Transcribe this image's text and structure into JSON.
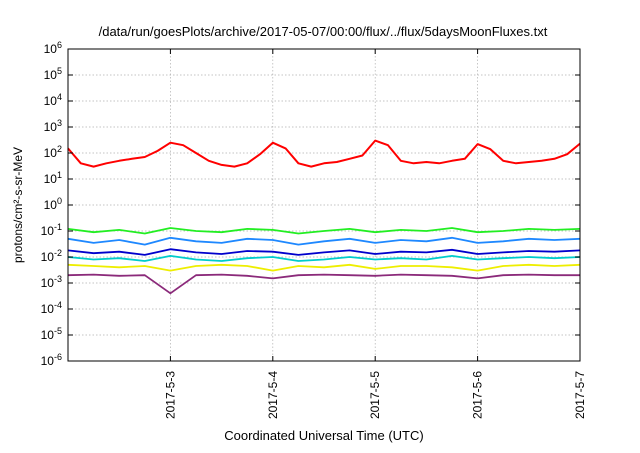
{
  "chart_data": {
    "type": "line",
    "title": "/data/run/goesPlots/archive/2017-05-07/00:00/flux/../flux/5daysMoonFluxes.txt",
    "xlabel": "Coordinated Universal Time (UTC)",
    "ylabel": "protons/cm²-s-sr-MeV",
    "x_scale": "time",
    "y_scale": "log",
    "xlim": [
      "2017-05-02T00:00",
      "2017-05-07T00:00"
    ],
    "ylim": [
      1e-06,
      1000000.0
    ],
    "grid": true,
    "legend": "none",
    "x_ticks": [
      "2017-5-3",
      "2017-5-4",
      "2017-5-5",
      "2017-5-6",
      "2017-5-7"
    ],
    "y_ticks": [
      {
        "value": 1e-06,
        "base": "10",
        "exp": "-6"
      },
      {
        "value": 1e-05,
        "base": "10",
        "exp": "-5"
      },
      {
        "value": 0.0001,
        "base": "10",
        "exp": "-4"
      },
      {
        "value": 0.001,
        "base": "10",
        "exp": "-3"
      },
      {
        "value": 0.01,
        "base": "10",
        "exp": "-2"
      },
      {
        "value": 0.1,
        "base": "10",
        "exp": "-1"
      },
      {
        "value": 1,
        "base": "10",
        "exp": "0"
      },
      {
        "value": 10,
        "base": "10",
        "exp": "1"
      },
      {
        "value": 100,
        "base": "10",
        "exp": "2"
      },
      {
        "value": 1000,
        "base": "10",
        "exp": "3"
      },
      {
        "value": 10000,
        "base": "10",
        "exp": "4"
      },
      {
        "value": 100000,
        "base": "10",
        "exp": "5"
      },
      {
        "value": 1000000,
        "base": "10",
        "exp": "6"
      }
    ],
    "series": [
      {
        "color": "#ff0000",
        "x": [
          "2017-05-02T00:00",
          "2017-05-02T03:00",
          "2017-05-02T06:00",
          "2017-05-02T09:00",
          "2017-05-02T12:00",
          "2017-05-02T15:00",
          "2017-05-02T18:00",
          "2017-05-02T21:00",
          "2017-05-03T00:00",
          "2017-05-03T03:00",
          "2017-05-03T06:00",
          "2017-05-03T09:00",
          "2017-05-03T12:00",
          "2017-05-03T15:00",
          "2017-05-03T18:00",
          "2017-05-03T21:00",
          "2017-05-04T00:00",
          "2017-05-04T03:00",
          "2017-05-04T06:00",
          "2017-05-04T09:00",
          "2017-05-04T12:00",
          "2017-05-04T15:00",
          "2017-05-04T18:00",
          "2017-05-04T21:00",
          "2017-05-05T00:00",
          "2017-05-05T03:00",
          "2017-05-05T06:00",
          "2017-05-05T09:00",
          "2017-05-05T12:00",
          "2017-05-05T15:00",
          "2017-05-05T18:00",
          "2017-05-05T21:00",
          "2017-05-06T00:00",
          "2017-05-06T03:00",
          "2017-05-06T06:00",
          "2017-05-06T09:00",
          "2017-05-06T12:00",
          "2017-05-06T15:00",
          "2017-05-06T18:00",
          "2017-05-06T21:00",
          "2017-05-07T00:00"
        ],
        "y": [
          150,
          40,
          30,
          40,
          50,
          60,
          70,
          120,
          250,
          200,
          100,
          50,
          35,
          30,
          40,
          90,
          250,
          150,
          40,
          30,
          40,
          45,
          60,
          80,
          300,
          200,
          50,
          40,
          45,
          40,
          50,
          60,
          220,
          140,
          50,
          40,
          45,
          50,
          60,
          90,
          230
        ]
      },
      {
        "color": "#22ee22",
        "x": [
          "2017-05-02T00:00",
          "2017-05-02T06:00",
          "2017-05-02T12:00",
          "2017-05-02T18:00",
          "2017-05-03T00:00",
          "2017-05-03T06:00",
          "2017-05-03T12:00",
          "2017-05-03T18:00",
          "2017-05-04T00:00",
          "2017-05-04T06:00",
          "2017-05-04T12:00",
          "2017-05-04T18:00",
          "2017-05-05T00:00",
          "2017-05-05T06:00",
          "2017-05-05T12:00",
          "2017-05-05T18:00",
          "2017-05-06T00:00",
          "2017-05-06T06:00",
          "2017-05-06T12:00",
          "2017-05-06T18:00",
          "2017-05-07T00:00"
        ],
        "y": [
          0.12,
          0.09,
          0.11,
          0.08,
          0.13,
          0.1,
          0.09,
          0.12,
          0.11,
          0.08,
          0.1,
          0.12,
          0.09,
          0.11,
          0.1,
          0.13,
          0.09,
          0.1,
          0.12,
          0.11,
          0.12
        ]
      },
      {
        "color": "#1e88ff",
        "x": [
          "2017-05-02T00:00",
          "2017-05-02T06:00",
          "2017-05-02T12:00",
          "2017-05-02T18:00",
          "2017-05-03T00:00",
          "2017-05-03T06:00",
          "2017-05-03T12:00",
          "2017-05-03T18:00",
          "2017-05-04T00:00",
          "2017-05-04T06:00",
          "2017-05-04T12:00",
          "2017-05-04T18:00",
          "2017-05-05T00:00",
          "2017-05-05T06:00",
          "2017-05-05T12:00",
          "2017-05-05T18:00",
          "2017-05-06T00:00",
          "2017-05-06T06:00",
          "2017-05-06T12:00",
          "2017-05-06T18:00",
          "2017-05-07T00:00"
        ],
        "y": [
          0.05,
          0.035,
          0.045,
          0.03,
          0.055,
          0.04,
          0.035,
          0.05,
          0.045,
          0.03,
          0.04,
          0.05,
          0.035,
          0.045,
          0.04,
          0.055,
          0.035,
          0.04,
          0.05,
          0.045,
          0.05
        ]
      },
      {
        "color": "#00cccc",
        "x": [
          "2017-05-02T00:00",
          "2017-05-02T06:00",
          "2017-05-02T12:00",
          "2017-05-02T18:00",
          "2017-05-03T00:00",
          "2017-05-03T06:00",
          "2017-05-03T12:00",
          "2017-05-03T18:00",
          "2017-05-04T00:00",
          "2017-05-04T06:00",
          "2017-05-04T12:00",
          "2017-05-04T18:00",
          "2017-05-05T00:00",
          "2017-05-05T06:00",
          "2017-05-05T12:00",
          "2017-05-05T18:00",
          "2017-05-06T00:00",
          "2017-05-06T06:00",
          "2017-05-06T12:00",
          "2017-05-06T18:00",
          "2017-05-07T00:00"
        ],
        "y": [
          0.01,
          0.008,
          0.009,
          0.007,
          0.011,
          0.008,
          0.007,
          0.009,
          0.01,
          0.007,
          0.008,
          0.01,
          0.008,
          0.009,
          0.008,
          0.011,
          0.008,
          0.009,
          0.01,
          0.009,
          0.01
        ]
      },
      {
        "color": "#0000cc",
        "x": [
          "2017-05-02T00:00",
          "2017-05-02T06:00",
          "2017-05-02T12:00",
          "2017-05-02T18:00",
          "2017-05-03T00:00",
          "2017-05-03T06:00",
          "2017-05-03T12:00",
          "2017-05-03T18:00",
          "2017-05-04T00:00",
          "2017-05-04T06:00",
          "2017-05-04T12:00",
          "2017-05-04T18:00",
          "2017-05-05T00:00",
          "2017-05-05T06:00",
          "2017-05-05T12:00",
          "2017-05-05T18:00",
          "2017-05-06T00:00",
          "2017-05-06T06:00",
          "2017-05-06T12:00",
          "2017-05-06T18:00",
          "2017-05-07T00:00"
        ],
        "y": [
          0.018,
          0.014,
          0.016,
          0.012,
          0.02,
          0.015,
          0.013,
          0.017,
          0.016,
          0.012,
          0.015,
          0.018,
          0.013,
          0.016,
          0.015,
          0.019,
          0.013,
          0.015,
          0.017,
          0.016,
          0.018
        ]
      },
      {
        "color": "#eeee00",
        "x": [
          "2017-05-02T00:00",
          "2017-05-02T06:00",
          "2017-05-02T12:00",
          "2017-05-02T18:00",
          "2017-05-03T00:00",
          "2017-05-03T06:00",
          "2017-05-03T12:00",
          "2017-05-03T18:00",
          "2017-05-04T00:00",
          "2017-05-04T06:00",
          "2017-05-04T12:00",
          "2017-05-04T18:00",
          "2017-05-05T00:00",
          "2017-05-05T06:00",
          "2017-05-05T12:00",
          "2017-05-05T18:00",
          "2017-05-06T00:00",
          "2017-05-06T06:00",
          "2017-05-06T12:00",
          "2017-05-06T18:00",
          "2017-05-07T00:00"
        ],
        "y": [
          0.005,
          0.0045,
          0.004,
          0.0045,
          0.003,
          0.0045,
          0.005,
          0.0045,
          0.003,
          0.0045,
          0.004,
          0.005,
          0.0035,
          0.0045,
          0.0045,
          0.004,
          0.003,
          0.0045,
          0.005,
          0.0045,
          0.005
        ]
      },
      {
        "color": "#8b2a7a",
        "x": [
          "2017-05-02T00:00",
          "2017-05-02T06:00",
          "2017-05-02T12:00",
          "2017-05-02T18:00",
          "2017-05-03T00:00",
          "2017-05-03T06:00",
          "2017-05-03T12:00",
          "2017-05-03T18:00",
          "2017-05-04T00:00",
          "2017-05-04T06:00",
          "2017-05-04T12:00",
          "2017-05-04T18:00",
          "2017-05-05T00:00",
          "2017-05-05T06:00",
          "2017-05-05T12:00",
          "2017-05-05T18:00",
          "2017-05-06T00:00",
          "2017-05-06T06:00",
          "2017-05-06T12:00",
          "2017-05-06T18:00",
          "2017-05-07T00:00"
        ],
        "y": [
          0.002,
          0.0021,
          0.0019,
          0.002,
          0.0004,
          0.002,
          0.0021,
          0.0019,
          0.0015,
          0.002,
          0.0021,
          0.002,
          0.0019,
          0.0021,
          0.002,
          0.0019,
          0.0015,
          0.002,
          0.0021,
          0.002,
          0.002
        ]
      }
    ]
  }
}
